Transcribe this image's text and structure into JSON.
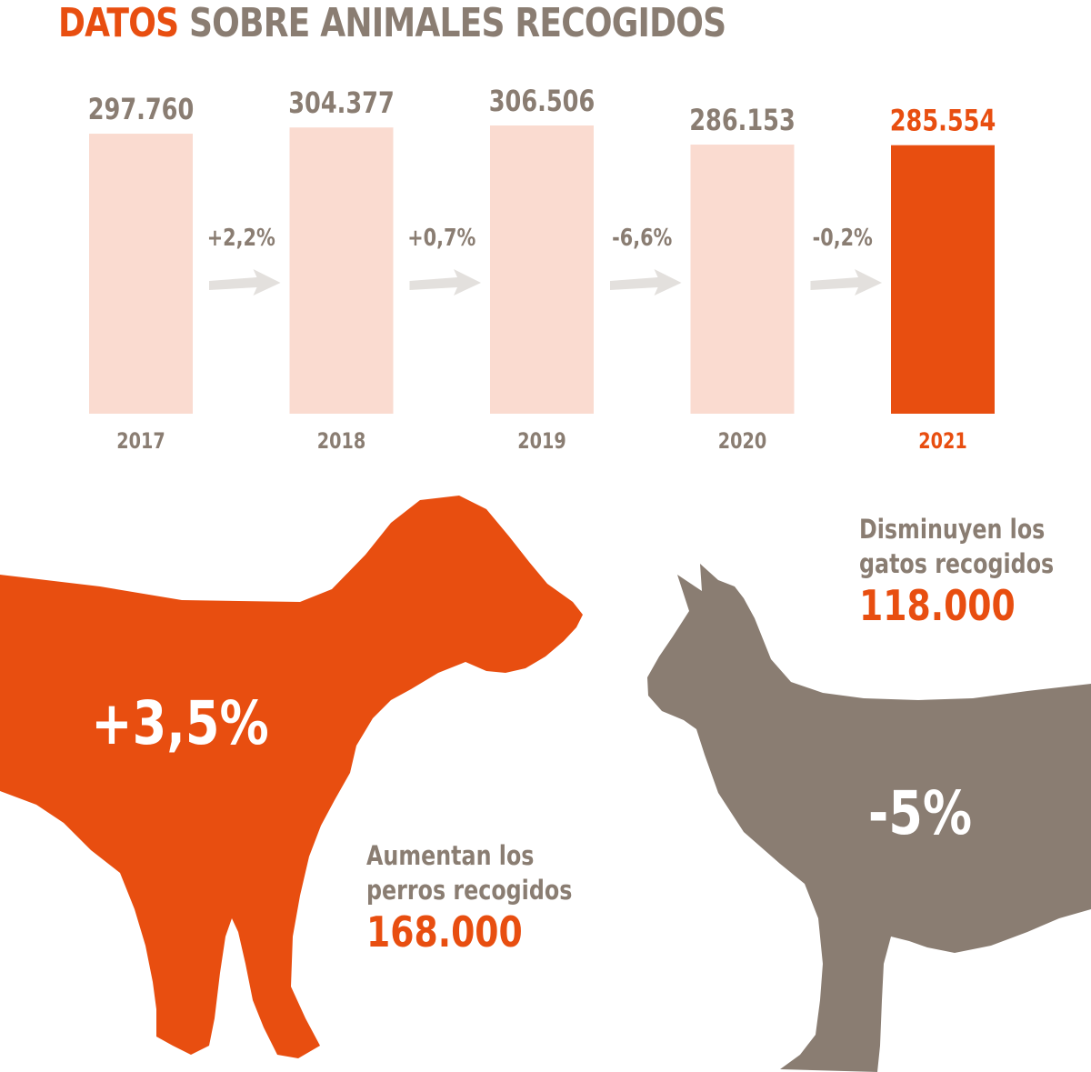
{
  "title": {
    "accent": "DATOS",
    "rest": "SOBRE ANIMALES RECOGIDOS"
  },
  "colors": {
    "orange": "#e84e10",
    "light": "#fadbd0",
    "gray": "#8a7d72",
    "arrow": "#e3e0dd",
    "white": "#ffffff"
  },
  "chart_data": {
    "type": "bar",
    "title": "DATOS SOBRE ANIMALES RECOGIDOS",
    "categories": [
      "2017",
      "2018",
      "2019",
      "2020",
      "2021"
    ],
    "values": [
      297760,
      304377,
      306506,
      286153,
      285554
    ],
    "value_labels": [
      "297.760",
      "304.377",
      "306.506",
      "286.153",
      "285.554"
    ],
    "highlight_index": 4,
    "changes": [
      "+2,2%",
      "+0,7%",
      "-6,6%",
      "-0,2%"
    ],
    "ylim": [
      0,
      306506
    ]
  },
  "dogs": {
    "change": "+3,5%",
    "line1": "Aumentan los",
    "line2": "perros recogidos",
    "count": "168.000"
  },
  "cats": {
    "change": "-5%",
    "line1": "Disminuyen los",
    "line2": "gatos recogidos",
    "count": "118.000"
  }
}
